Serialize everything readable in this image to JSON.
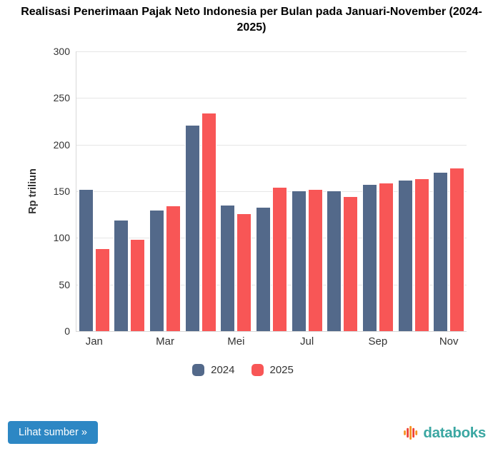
{
  "chart_data": {
    "type": "bar",
    "title": "Realisasi Penerimaan Pajak Neto Indonesia per Bulan pada Januari-November (2024-\n2025)",
    "ylabel": "Rp triliun",
    "xlabel": "",
    "ylim": [
      0,
      300
    ],
    "yticks": [
      0,
      50,
      100,
      150,
      200,
      250,
      300
    ],
    "grid": true,
    "legend_position": "bottom",
    "x_tick_labels": [
      "Jan",
      "Mar",
      "Mei",
      "Jul",
      "Sep",
      "Nov"
    ],
    "x_tick_group_indices": [
      0,
      2,
      4,
      6,
      8,
      10
    ],
    "groups_count": 11,
    "series": [
      {
        "name": "2024",
        "color": "#53698a",
        "values": [
          152.5,
          119.5,
          130,
          221,
          135.5,
          133,
          151,
          151,
          157.5,
          162,
          170.5
        ]
      },
      {
        "name": "2025",
        "color": "#f85656",
        "values": [
          89,
          98.5,
          135,
          234,
          126.5,
          154.5,
          152,
          145,
          159.5,
          163.5,
          175.5
        ]
      }
    ]
  },
  "footer": {
    "source_button_label": "Lihat sumber »",
    "brand_name": "databoks",
    "brand_color": "#3ba7a2",
    "button_color": "#2d87c4"
  },
  "icons": {
    "brand_icon": "equalizer-bars-icon",
    "brand_icon_colors": [
      "#f6921e",
      "#ee4036",
      "#f6921e",
      "#ee4036",
      "#f6921e"
    ]
  },
  "colors": {
    "gridline": "#e6e6e6",
    "axis_line": "#d8d8d8",
    "text": "#333333"
  }
}
